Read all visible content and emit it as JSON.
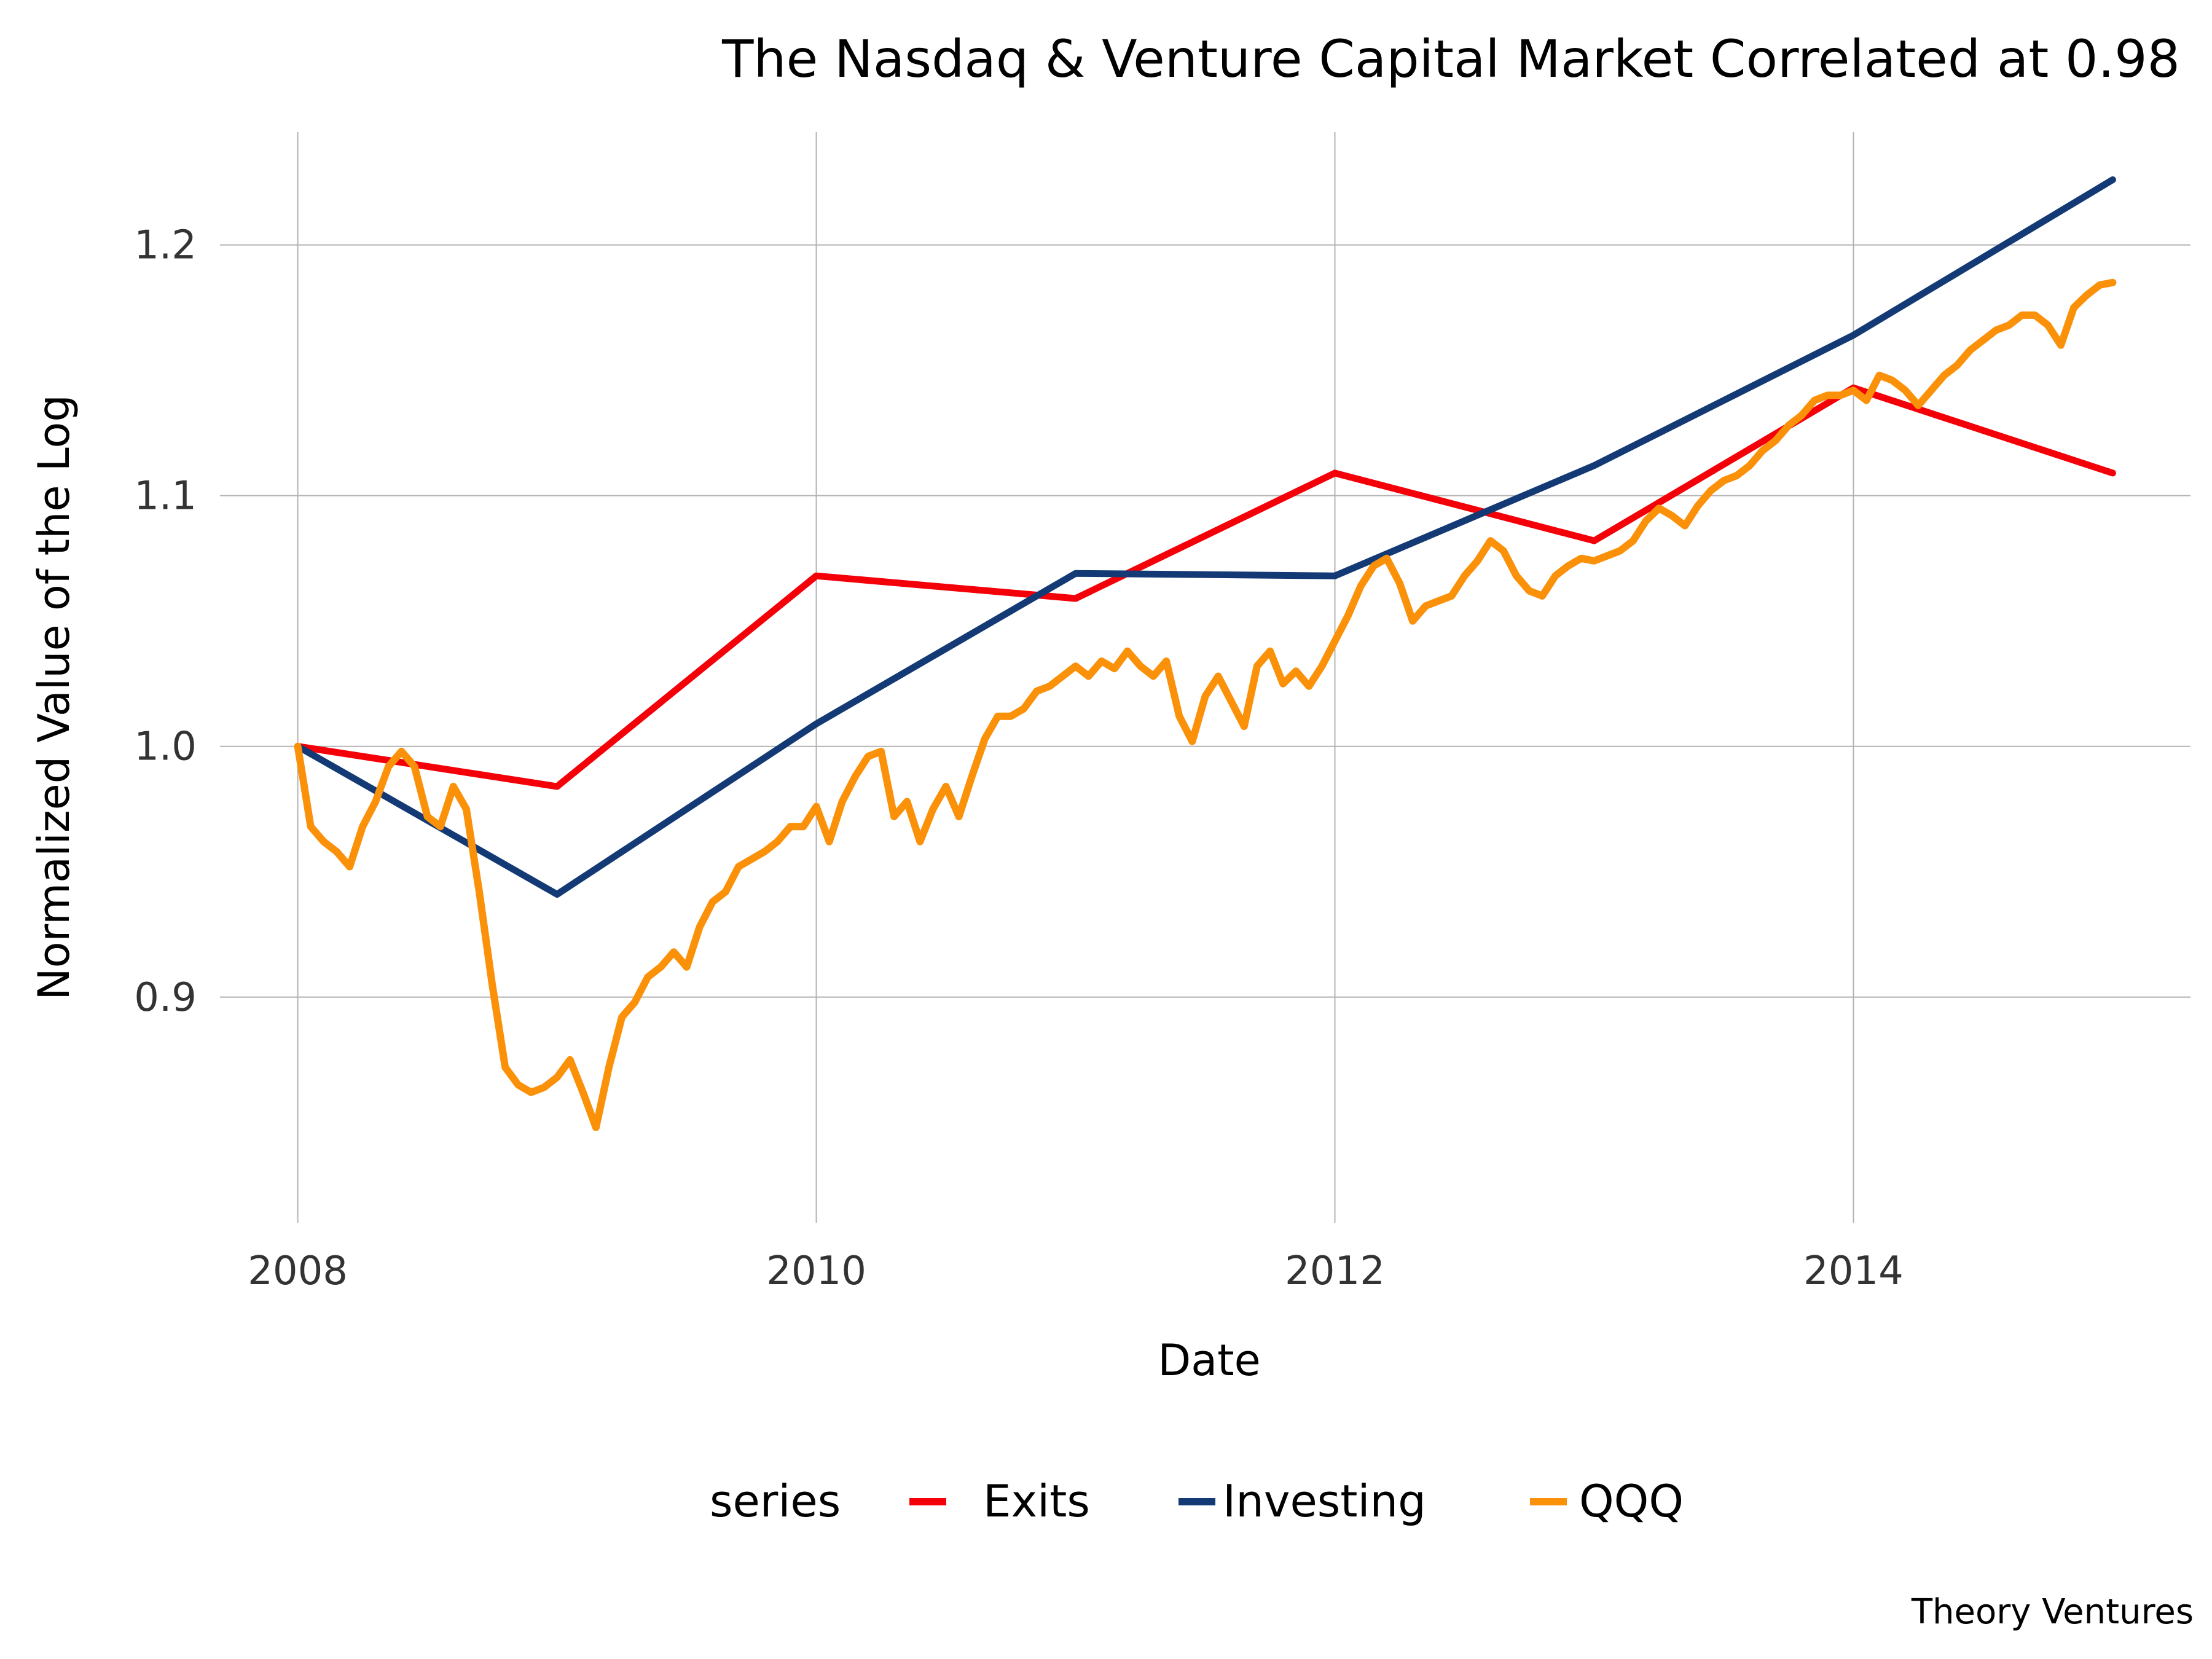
{
  "chart_data": {
    "type": "line",
    "title": "The Nasdaq & Venture Capital Market Correlated at 0.98",
    "xlabel": "Date",
    "ylabel": "Normalized Value of the Log",
    "x_ticks": [
      "2008",
      "2010",
      "2012",
      "2014"
    ],
    "y_ticks": [
      "0.9",
      "1.0",
      "1.1",
      "1.2"
    ],
    "xlim": [
      2007.7,
      2015.3
    ],
    "ylim": [
      0.81,
      1.245
    ],
    "grid": true,
    "legend_title": "series",
    "legend_position": "bottom",
    "caption": "Theory Ventures",
    "series": [
      {
        "name": "Exits",
        "color": "#f40009",
        "x": [
          2008,
          2009,
          2010,
          2011,
          2012,
          2013,
          2014,
          2015
        ],
        "values": [
          1.0,
          0.984,
          1.068,
          1.059,
          1.109,
          1.082,
          1.143,
          1.109
        ]
      },
      {
        "name": "Investing",
        "color": "#143a75",
        "x": [
          2008,
          2009,
          2010,
          2011,
          2012,
          2013,
          2014,
          2015
        ],
        "values": [
          1.0,
          0.941,
          1.009,
          1.069,
          1.068,
          1.112,
          1.164,
          1.226
        ]
      },
      {
        "name": "QQQ",
        "color": "#fb9009",
        "x": [
          2008.0,
          2008.05,
          2008.1,
          2008.15,
          2008.2,
          2008.25,
          2008.3,
          2008.35,
          2008.4,
          2008.45,
          2008.5,
          2008.55,
          2008.6,
          2008.65,
          2008.7,
          2008.75,
          2008.8,
          2008.85,
          2008.9,
          2008.95,
          2009.0,
          2009.05,
          2009.1,
          2009.15,
          2009.2,
          2009.25,
          2009.3,
          2009.35,
          2009.4,
          2009.45,
          2009.5,
          2009.55,
          2009.6,
          2009.65,
          2009.7,
          2009.75,
          2009.8,
          2009.85,
          2009.9,
          2009.95,
          2010.0,
          2010.05,
          2010.1,
          2010.15,
          2010.2,
          2010.25,
          2010.3,
          2010.35,
          2010.4,
          2010.45,
          2010.5,
          2010.55,
          2010.6,
          2010.65,
          2010.7,
          2010.75,
          2010.8,
          2010.85,
          2010.9,
          2010.95,
          2011.0,
          2011.05,
          2011.1,
          2011.15,
          2011.2,
          2011.25,
          2011.3,
          2011.35,
          2011.4,
          2011.45,
          2011.5,
          2011.55,
          2011.6,
          2011.65,
          2011.7,
          2011.75,
          2011.8,
          2011.85,
          2011.9,
          2011.95,
          2012.0,
          2012.05,
          2012.1,
          2012.15,
          2012.2,
          2012.25,
          2012.3,
          2012.35,
          2012.4,
          2012.45,
          2012.5,
          2012.55,
          2012.6,
          2012.65,
          2012.7,
          2012.75,
          2012.8,
          2012.85,
          2012.9,
          2012.95,
          2013.0,
          2013.05,
          2013.1,
          2013.15,
          2013.2,
          2013.25,
          2013.3,
          2013.35,
          2013.4,
          2013.45,
          2013.5,
          2013.55,
          2013.6,
          2013.65,
          2013.7,
          2013.75,
          2013.8,
          2013.85,
          2013.9,
          2013.95,
          2014.0,
          2014.05,
          2014.1,
          2014.15,
          2014.2,
          2014.25,
          2014.3,
          2014.35,
          2014.4,
          2014.45,
          2014.5,
          2014.55,
          2014.6,
          2014.65,
          2014.7,
          2014.75,
          2014.8,
          2014.85,
          2014.9,
          2014.95,
          2015.0
        ],
        "values": [
          1.0,
          0.968,
          0.962,
          0.958,
          0.952,
          0.968,
          0.978,
          0.992,
          0.998,
          0.992,
          0.972,
          0.968,
          0.984,
          0.975,
          0.942,
          0.905,
          0.872,
          0.865,
          0.862,
          0.864,
          0.868,
          0.875,
          0.862,
          0.848,
          0.872,
          0.892,
          0.898,
          0.908,
          0.912,
          0.918,
          0.912,
          0.928,
          0.938,
          0.942,
          0.952,
          0.955,
          0.958,
          0.962,
          0.968,
          0.968,
          0.976,
          0.962,
          0.978,
          0.988,
          0.996,
          0.998,
          0.972,
          0.978,
          0.962,
          0.975,
          0.984,
          0.972,
          0.988,
          1.003,
          1.012,
          1.012,
          1.015,
          1.022,
          1.024,
          1.028,
          1.032,
          1.028,
          1.034,
          1.031,
          1.038,
          1.032,
          1.028,
          1.034,
          1.012,
          1.002,
          1.02,
          1.028,
          1.018,
          1.008,
          1.032,
          1.038,
          1.025,
          1.03,
          1.024,
          1.032,
          1.042,
          1.052,
          1.064,
          1.072,
          1.075,
          1.065,
          1.05,
          1.056,
          1.058,
          1.06,
          1.068,
          1.074,
          1.082,
          1.078,
          1.068,
          1.062,
          1.06,
          1.068,
          1.072,
          1.075,
          1.074,
          1.076,
          1.078,
          1.082,
          1.09,
          1.095,
          1.092,
          1.088,
          1.096,
          1.102,
          1.106,
          1.108,
          1.112,
          1.118,
          1.122,
          1.128,
          1.132,
          1.138,
          1.14,
          1.14,
          1.142,
          1.138,
          1.148,
          1.146,
          1.142,
          1.136,
          1.142,
          1.148,
          1.152,
          1.158,
          1.162,
          1.166,
          1.168,
          1.172,
          1.172,
          1.168,
          1.16,
          1.175,
          1.18,
          1.184,
          1.185
        ]
      }
    ]
  }
}
